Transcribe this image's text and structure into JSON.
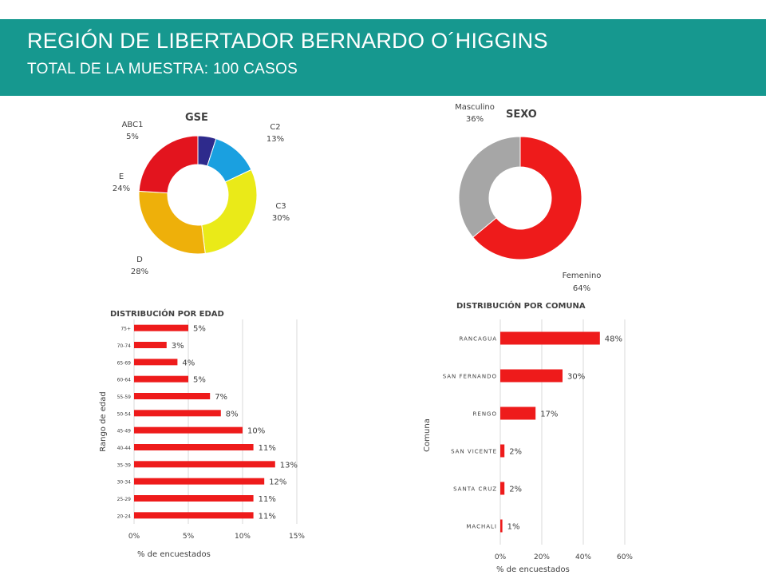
{
  "header": {
    "title": "REGIÓN DE LIBERTADOR BERNARDO O´HIGGINS",
    "subtitle": "TOTAL DE LA MUESTRA: 100 CASOS"
  },
  "chart_data": [
    {
      "type": "pie",
      "title": "GSE",
      "slices": [
        {
          "label": "ABC1",
          "value": 5,
          "display": "5%",
          "color": "#2e2a8c"
        },
        {
          "label": "C2",
          "value": 13,
          "display": "13%",
          "color": "#1aa0e0"
        },
        {
          "label": "C3",
          "value": 30,
          "display": "30%",
          "color": "#eaea18"
        },
        {
          "label": "D",
          "value": 28,
          "display": "28%",
          "color": "#eeb00a"
        },
        {
          "label": "E",
          "value": 24,
          "display": "24%",
          "color": "#e3141e"
        }
      ]
    },
    {
      "type": "pie",
      "title": "SEXO",
      "slices": [
        {
          "label": "Femenino",
          "value": 64,
          "display": "64%",
          "color": "#ee1b1b"
        },
        {
          "label": "Masculino",
          "value": 36,
          "display": "36%",
          "color": "#a6a6a6"
        }
      ]
    },
    {
      "type": "bar",
      "orientation": "horizontal",
      "title": "DISTRIBUCIÓN POR EDAD",
      "xlabel": "% de encuestados",
      "ylabel": "Rango de edad",
      "xlim": [
        0,
        15
      ],
      "xticks": [
        "0%",
        "5%",
        "10%",
        "15%"
      ],
      "color": "#ee1b1b",
      "categories": [
        "75+",
        "70-74",
        "65-69",
        "60-64",
        "55-59",
        "50-54",
        "45-49",
        "40-44",
        "35-39",
        "30-34",
        "25-29",
        "20-24"
      ],
      "values": [
        5,
        3,
        4,
        5,
        7,
        8,
        10,
        11,
        13,
        12,
        11,
        11
      ],
      "labels": [
        "5%",
        "3%",
        "4%",
        "5%",
        "7%",
        "8%",
        "10%",
        "11%",
        "13%",
        "12%",
        "11%",
        "11%"
      ]
    },
    {
      "type": "bar",
      "orientation": "horizontal",
      "title": "DISTRIBUCIÓN POR COMUNA",
      "xlabel": "% de encuestados",
      "ylabel": "Comuna",
      "xlim": [
        0,
        60
      ],
      "xticks": [
        "0%",
        "20%",
        "40%",
        "60%"
      ],
      "color": "#ee1b1b",
      "categories": [
        "RANCAGUA",
        "SAN FERNANDO",
        "RENGO",
        "SAN VICENTE",
        "SANTA CRUZ",
        "MACHALI"
      ],
      "values": [
        48,
        30,
        17,
        2,
        2,
        1
      ],
      "labels": [
        "48%",
        "30%",
        "17%",
        "2%",
        "2%",
        "1%"
      ]
    }
  ]
}
